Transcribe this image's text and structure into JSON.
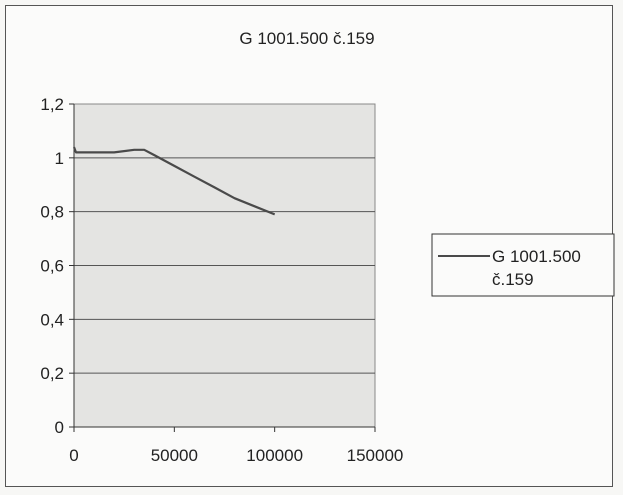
{
  "chart_data": {
    "type": "line",
    "title": "G 1001.500 č.159",
    "xlabel": "",
    "ylabel": "",
    "xlim": [
      0,
      150000
    ],
    "ylim": [
      0,
      1.2
    ],
    "x_ticks": [
      "0",
      "50000",
      "100000",
      "150000"
    ],
    "y_ticks": [
      "0",
      "0,2",
      "0,4",
      "0,6",
      "0,8",
      "1",
      "1,2"
    ],
    "grid": "horizontal",
    "legend_position": "right",
    "legend_lines": [
      "G 1001.500",
      "č.159"
    ],
    "series": [
      {
        "name": "G 1001.500 č.159",
        "color": "#4a4a4a",
        "x": [
          0,
          1000,
          5000,
          10000,
          20000,
          30000,
          35000,
          40000,
          50000,
          60000,
          70000,
          80000,
          90000,
          100000
        ],
        "y": [
          1.04,
          1.02,
          1.02,
          1.02,
          1.02,
          1.03,
          1.03,
          1.01,
          0.97,
          0.93,
          0.89,
          0.85,
          0.82,
          0.79
        ]
      }
    ]
  }
}
